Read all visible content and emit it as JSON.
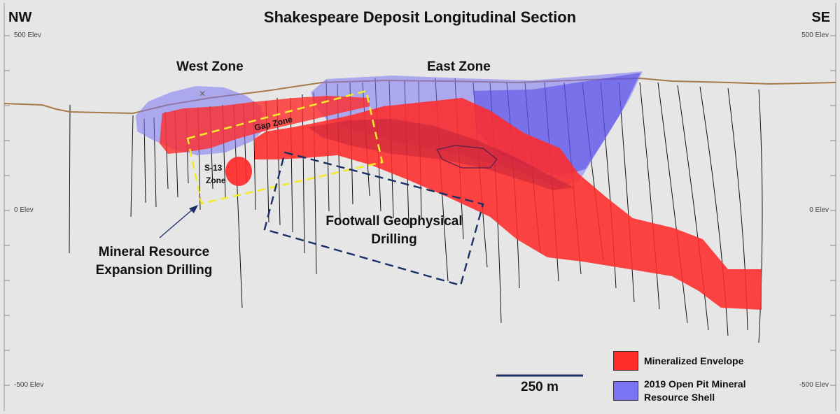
{
  "title": "Shakespeare Deposit Longitudinal Section",
  "directions": {
    "left": "NW",
    "right": "SE"
  },
  "elevation_labels": {
    "top": "500 Elev",
    "middle": "0 Elev",
    "bottom": "-500 Elev"
  },
  "zones": {
    "west": "West Zone",
    "east": "East Zone",
    "gap": "Gap Zone",
    "s13_line1": "S-13",
    "s13_line2": "Zone"
  },
  "callouts": {
    "resource_expansion_line1": "Mineral Resource",
    "resource_expansion_line2": "Expansion Drilling",
    "footwall_line1": "Footwall Geophysical",
    "footwall_line2": "Drilling"
  },
  "scale_bar": {
    "label": "250 m"
  },
  "legend": [
    {
      "label_line1": "Mineralized Envelope",
      "label_line2": "",
      "color": "#ff2a2a"
    },
    {
      "label_line1": "2019 Open Pit Mineral",
      "label_line2": "Resource Shell",
      "color": "#7b74f2"
    }
  ],
  "colors": {
    "background": "#e6e6e6",
    "topography": "#a67a4a",
    "mineralized": "#ff2a2a",
    "pit_shell": "#7b74f2",
    "resource_box": "#f2ea2a",
    "footwall_box": "#1a2f66",
    "drillholes": "#111111"
  }
}
